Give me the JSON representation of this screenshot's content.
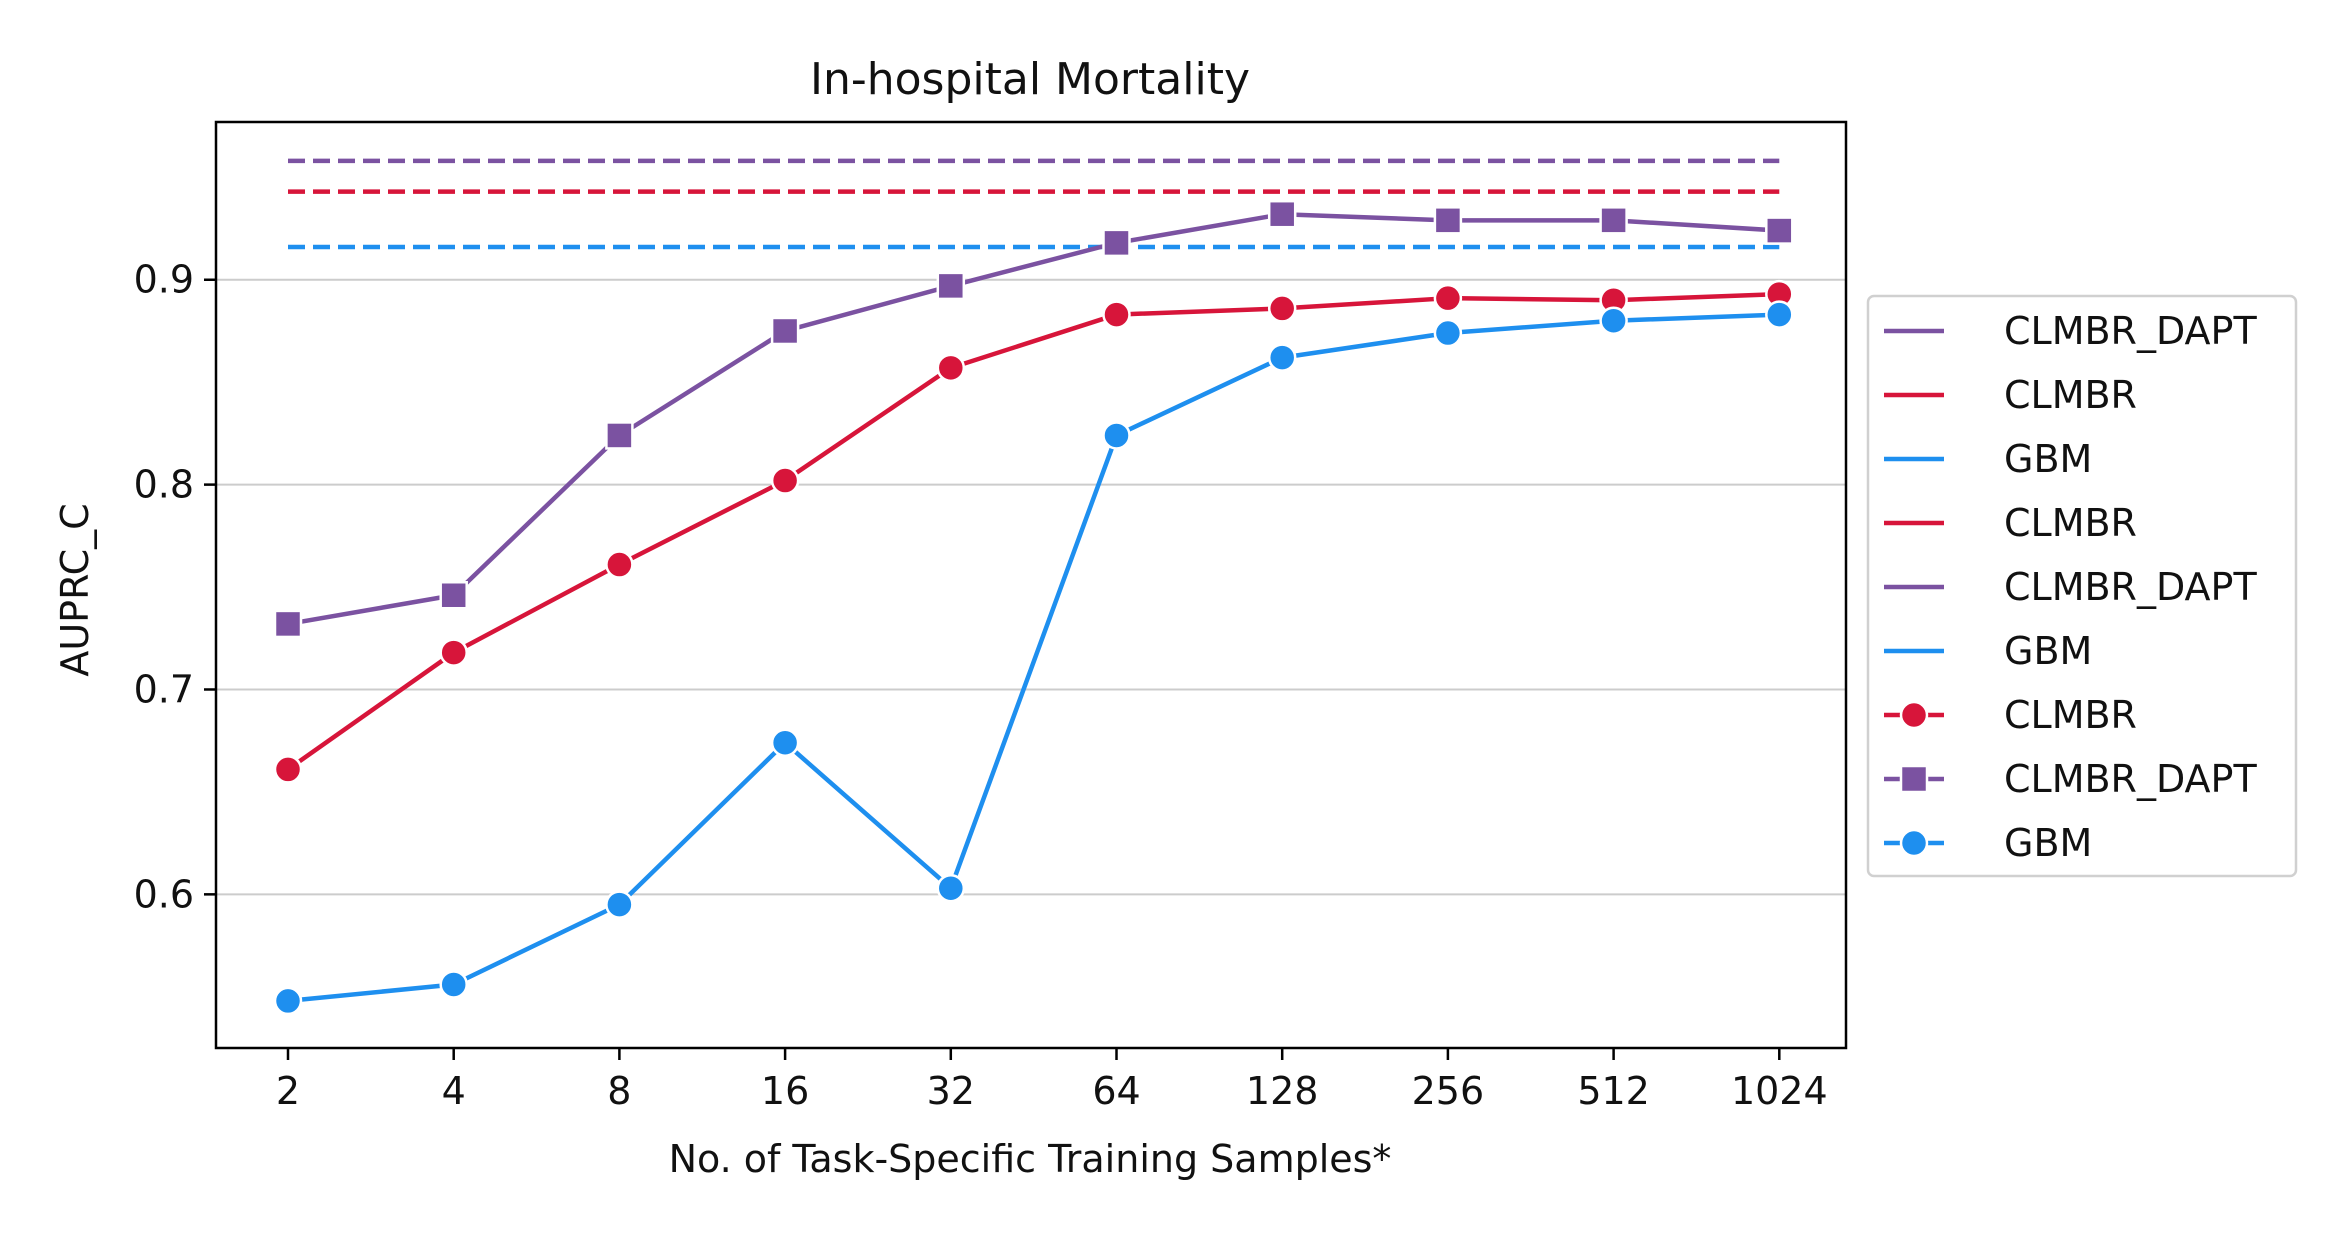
{
  "chart_data": {
    "type": "line",
    "title": "In-hospital Mortality",
    "xlabel": "No. of Task-Specific Training Samples*",
    "ylabel": "AUPRC_C",
    "x": [
      "2",
      "4",
      "8",
      "16",
      "32",
      "64",
      "128",
      "256",
      "512",
      "1024"
    ],
    "xscale": "categorical (log2 spaced)",
    "ylim": [
      0.525,
      0.977
    ],
    "yticks": [
      "0.6",
      "0.7",
      "0.8",
      "0.9"
    ],
    "grid": "horizontal",
    "legend_position": "right, outside plot",
    "baselines": [
      {
        "name": "CLMBR_DAPT",
        "color": "#7b52a1",
        "style": "dashed",
        "value": 0.958
      },
      {
        "name": "CLMBR",
        "color": "#d7153a",
        "style": "dashed",
        "value": 0.943
      },
      {
        "name": "GBM",
        "color": "#1e8fef",
        "style": "dashed",
        "value": 0.916
      }
    ],
    "series": [
      {
        "name": "CLMBR",
        "color": "#d7153a",
        "marker": "circle",
        "values": [
          0.661,
          0.718,
          0.761,
          0.802,
          0.857,
          0.883,
          0.886,
          0.891,
          0.89,
          0.893
        ]
      },
      {
        "name": "CLMBR_DAPT",
        "color": "#7b52a1",
        "marker": "square",
        "values": [
          0.732,
          0.746,
          0.824,
          0.875,
          0.897,
          0.918,
          0.932,
          0.929,
          0.929,
          0.924
        ]
      },
      {
        "name": "GBM",
        "color": "#1e8fef",
        "marker": "circle",
        "values": [
          0.548,
          0.556,
          0.595,
          0.674,
          0.603,
          0.824,
          0.862,
          0.874,
          0.88,
          0.883
        ]
      }
    ],
    "legend": [
      {
        "label": "CLMBR_DAPT",
        "color": "#7b52a1",
        "marker": "none"
      },
      {
        "label": "CLMBR",
        "color": "#d7153a",
        "marker": "none"
      },
      {
        "label": "GBM",
        "color": "#1e8fef",
        "marker": "none"
      },
      {
        "label": "CLMBR",
        "color": "#d7153a",
        "marker": "none"
      },
      {
        "label": "CLMBR_DAPT",
        "color": "#7b52a1",
        "marker": "none"
      },
      {
        "label": "GBM",
        "color": "#1e8fef",
        "marker": "none"
      },
      {
        "label": "CLMBR",
        "color": "#d7153a",
        "marker": "circle"
      },
      {
        "label": "CLMBR_DAPT",
        "color": "#7b52a1",
        "marker": "square"
      },
      {
        "label": "GBM",
        "color": "#1e8fef",
        "marker": "circle"
      }
    ]
  }
}
